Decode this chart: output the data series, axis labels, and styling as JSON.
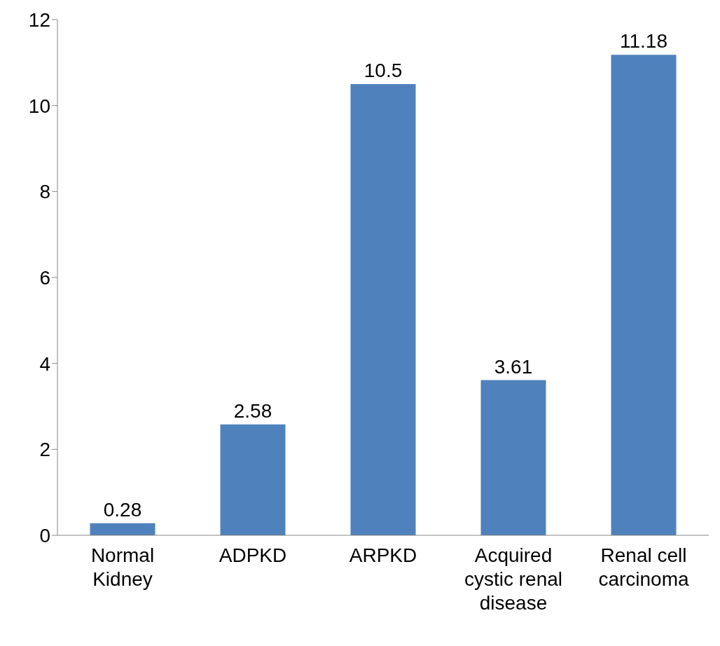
{
  "chart_data": {
    "type": "bar",
    "categories": [
      "Normal Kidney",
      "ADPKD",
      "ARPKD",
      "Acquired cystic renal disease",
      "Renal cell carcinoma"
    ],
    "values": [
      0.28,
      2.58,
      10.5,
      3.61,
      11.18
    ],
    "color": "#4f81bd",
    "ylim": [
      0,
      12
    ],
    "yticks": [
      0,
      2,
      4,
      6,
      8,
      10,
      12
    ],
    "data_labels": true,
    "grid": false
  }
}
